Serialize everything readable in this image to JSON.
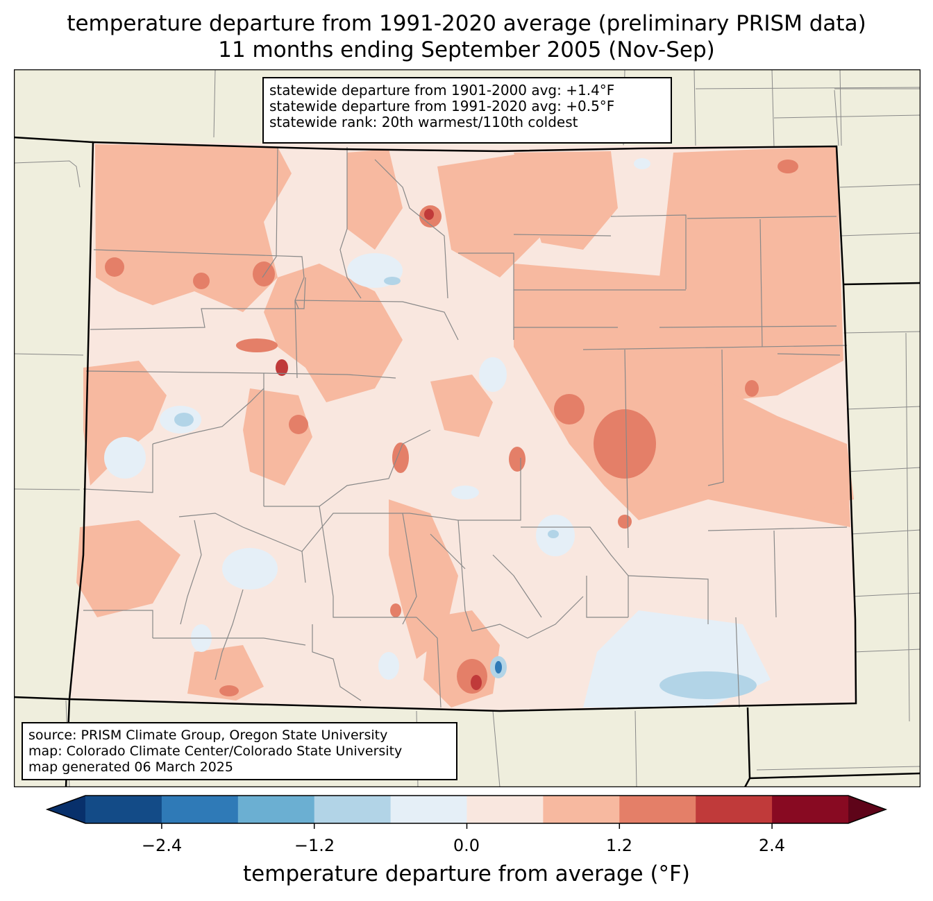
{
  "title": {
    "line1": "temperature departure from 1991-2020 average (preliminary PRISM data)",
    "line2": "11 months ending September 2005 (Nov-Sep)"
  },
  "stats": {
    "line1": "statewide departure from 1901-2000 avg: +1.4°F",
    "line2": "statewide departure from 1991-2020 avg: +0.5°F",
    "line3": "statewide rank: 20th warmest/110th coldest"
  },
  "source": {
    "line1": "source: PRISM Climate Group, Oregon State University",
    "line2": "map: Colorado Climate Center/Colorado State University",
    "line3": "map generated 06 March 2025"
  },
  "colorbar": {
    "label": "temperature departure from average (°F)",
    "ticks": [
      "−2.4",
      "−1.2",
      "0.0",
      "1.2",
      "2.4"
    ],
    "bins": [
      -3.0,
      -2.4,
      -1.8,
      -1.2,
      -0.6,
      0.0,
      0.6,
      1.2,
      1.8,
      2.4,
      3.0
    ],
    "colors": [
      "#08306b",
      "#134b87",
      "#2f7ab7",
      "#6bafd2",
      "#b2d4e7",
      "#e5eff7",
      "#f9e7df",
      "#f7b9a0",
      "#e47f68",
      "#c03a3a",
      "#880a22",
      "#5e0419"
    ]
  },
  "map_colors": {
    "land": "#efeedd",
    "state_line": "#000000",
    "county_line": "#888888"
  }
}
